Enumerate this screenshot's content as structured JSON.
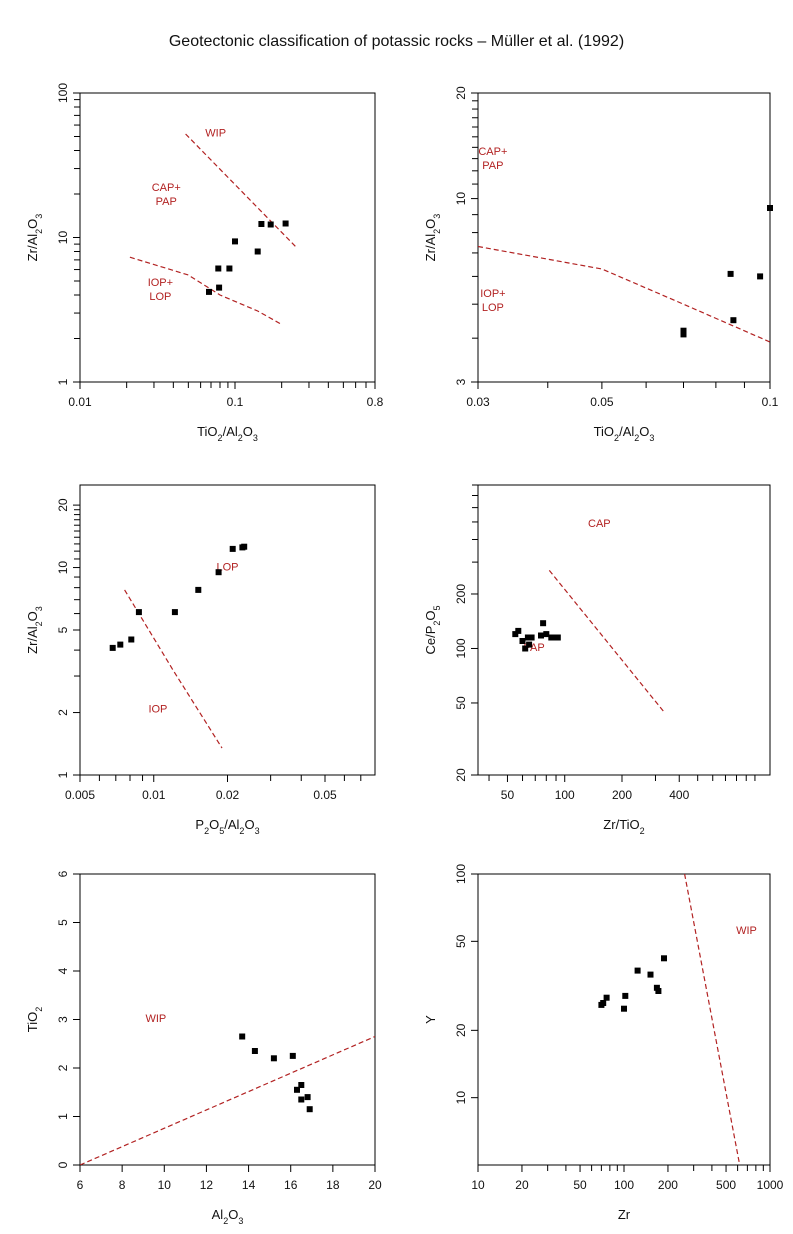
{
  "title": "Geotectonic classification of potassic rocks – Müller et al. (1992)",
  "colors": {
    "boundary": "#b22222",
    "field_label": "#b22222",
    "point": "#000000",
    "axis": "#000000"
  },
  "chart_data": [
    {
      "type": "scatter",
      "xlabel": {
        "parts": [
          [
            "TiO",
            "base"
          ],
          [
            "2",
            "sub"
          ],
          [
            "/",
            "base"
          ],
          [
            "Al",
            "base"
          ],
          [
            "2",
            "sub"
          ],
          [
            "O",
            "base"
          ],
          [
            "3",
            "sub"
          ]
        ]
      },
      "ylabel": {
        "parts": [
          [
            "Zr",
            "base"
          ],
          [
            "/",
            "base"
          ],
          [
            "Al",
            "base"
          ],
          [
            "2",
            "sub"
          ],
          [
            "O",
            "base"
          ],
          [
            "3",
            "sub"
          ]
        ]
      },
      "xscale": "log",
      "yscale": "log",
      "xlim": [
        0.01,
        0.8
      ],
      "ylim": [
        1,
        100
      ],
      "xticks": [
        [
          "0.01",
          0.01
        ],
        [
          "0.1",
          0.1
        ],
        [
          "0.8",
          0.8
        ]
      ],
      "xminor": [
        0.02,
        0.03,
        0.04,
        0.05,
        0.06,
        0.07,
        0.08,
        0.09,
        0.2,
        0.3,
        0.4,
        0.5,
        0.6,
        0.7
      ],
      "yticks": [
        [
          "1",
          1
        ],
        [
          "10",
          10
        ],
        [
          "100",
          100
        ]
      ],
      "yminor": [
        2,
        3,
        4,
        5,
        6,
        7,
        8,
        9,
        20,
        30,
        40,
        50,
        60,
        70,
        80,
        90
      ],
      "points": [
        [
          0.068,
          4.2
        ],
        [
          0.078,
          6.1
        ],
        [
          0.079,
          4.5
        ],
        [
          0.092,
          6.1
        ],
        [
          0.1,
          9.4
        ],
        [
          0.14,
          8.0
        ],
        [
          0.148,
          12.4
        ],
        [
          0.17,
          12.3
        ],
        [
          0.212,
          12.5
        ]
      ],
      "boundaries": [
        [
          [
            0.048,
            52
          ],
          [
            0.25,
            8.5
          ]
        ],
        [
          [
            0.021,
            7.3
          ],
          [
            0.05,
            5.5
          ],
          [
            0.08,
            4.0
          ],
          [
            0.14,
            3.1
          ],
          [
            0.2,
            2.5
          ]
        ]
      ],
      "field_labels": [
        {
          "lines": [
            "WIP"
          ],
          "x": 0.075,
          "y": 50
        },
        {
          "lines": [
            "CAP+",
            "PAP"
          ],
          "x": 0.036,
          "y": 21
        },
        {
          "lines": [
            "IOP+",
            "LOP"
          ],
          "x": 0.033,
          "y": 4.6
        }
      ]
    },
    {
      "type": "scatter",
      "xlabel": {
        "parts": [
          [
            "TiO",
            "base"
          ],
          [
            "2",
            "sub"
          ],
          [
            "/",
            "base"
          ],
          [
            "Al",
            "base"
          ],
          [
            "2",
            "sub"
          ],
          [
            "O",
            "base"
          ],
          [
            "3",
            "sub"
          ]
        ]
      },
      "ylabel": {
        "parts": [
          [
            "Zr",
            "base"
          ],
          [
            "/",
            "base"
          ],
          [
            "Al",
            "base"
          ],
          [
            "2",
            "sub"
          ],
          [
            "O",
            "base"
          ],
          [
            "3",
            "sub"
          ]
        ]
      },
      "xscale": "log",
      "yscale": "log",
      "xlim": [
        0.03,
        0.1
      ],
      "ylim": [
        3,
        20
      ],
      "xticks": [
        [
          "0.03",
          0.03
        ],
        [
          "0.05",
          0.05
        ],
        [
          "0.1",
          0.1
        ]
      ],
      "xminor": [
        0.04,
        0.06,
        0.07,
        0.08,
        0.09
      ],
      "yticks": [
        [
          "3",
          3
        ],
        [
          "10",
          10
        ],
        [
          "20",
          20
        ]
      ],
      "yminor": [
        4,
        5,
        6,
        7,
        8,
        9,
        11,
        12,
        13,
        14,
        15,
        16,
        17,
        18,
        19
      ],
      "points": [
        [
          0.07,
          4.2
        ],
        [
          0.07,
          4.1
        ],
        [
          0.085,
          6.1
        ],
        [
          0.086,
          4.5
        ],
        [
          0.096,
          6.0
        ],
        [
          0.1,
          9.4
        ]
      ],
      "boundaries": [
        [
          [
            0.03,
            7.3
          ],
          [
            0.05,
            6.3
          ],
          [
            0.07,
            5.0
          ],
          [
            0.1,
            3.9
          ]
        ]
      ],
      "field_labels": [
        {
          "lines": [
            "CAP+",
            "PAP"
          ],
          "x": 0.0319,
          "y": 13.3
        },
        {
          "lines": [
            "IOP+",
            "LOP"
          ],
          "x": 0.0319,
          "y": 5.25
        }
      ]
    },
    {
      "type": "scatter",
      "xlabel": {
        "parts": [
          [
            "P",
            "base"
          ],
          [
            "2",
            "sub"
          ],
          [
            "O",
            "base"
          ],
          [
            "5",
            "sub"
          ],
          [
            "/",
            "base"
          ],
          [
            "Al",
            "base"
          ],
          [
            "2",
            "sub"
          ],
          [
            "O",
            "base"
          ],
          [
            "3",
            "sub"
          ]
        ]
      },
      "ylabel": {
        "parts": [
          [
            "Zr",
            "base"
          ],
          [
            "/",
            "base"
          ],
          [
            "Al",
            "base"
          ],
          [
            "2",
            "sub"
          ],
          [
            "O",
            "base"
          ],
          [
            "3",
            "sub"
          ]
        ]
      },
      "xscale": "log",
      "yscale": "log",
      "xlim": [
        0.005,
        0.08
      ],
      "ylim": [
        1,
        25
      ],
      "xticks": [
        [
          "0.005",
          0.005
        ],
        [
          "0.01",
          0.01
        ],
        [
          "0.02",
          0.02
        ],
        [
          "0.05",
          0.05
        ]
      ],
      "xminor": [
        0.006,
        0.007,
        0.008,
        0.009,
        0.03,
        0.04,
        0.06,
        0.07
      ],
      "yticks": [
        [
          "1",
          1
        ],
        [
          "2",
          2
        ],
        [
          "5",
          5
        ],
        [
          "10",
          10
        ],
        [
          "20",
          20
        ]
      ],
      "yminor": [
        3,
        4,
        6,
        7,
        8,
        9,
        11,
        12,
        13,
        14,
        15,
        16,
        17,
        18,
        19
      ],
      "points": [
        [
          0.0068,
          4.1
        ],
        [
          0.0073,
          4.25
        ],
        [
          0.0081,
          4.5
        ],
        [
          0.0087,
          6.1
        ],
        [
          0.0122,
          6.1
        ],
        [
          0.0152,
          7.8
        ],
        [
          0.0184,
          9.5
        ],
        [
          0.021,
          12.3
        ],
        [
          0.023,
          12.5
        ],
        [
          0.0234,
          12.6
        ]
      ],
      "boundaries": [
        [
          [
            0.0076,
            7.8
          ],
          [
            0.012,
            3.2
          ],
          [
            0.019,
            1.35
          ]
        ]
      ],
      "field_labels": [
        {
          "lines": [
            "LOP"
          ],
          "x": 0.02,
          "y": 9.7
        },
        {
          "lines": [
            "IOP"
          ],
          "x": 0.0104,
          "y": 2.0
        }
      ]
    },
    {
      "type": "scatter",
      "xlabel": {
        "parts": [
          [
            "Zr",
            "base"
          ],
          [
            "/",
            "base"
          ],
          [
            "TiO",
            "base"
          ],
          [
            "2",
            "sub"
          ]
        ]
      },
      "ylabel": {
        "parts": [
          [
            "Ce",
            "base"
          ],
          [
            "/",
            "base"
          ],
          [
            "P",
            "base"
          ],
          [
            "2",
            "sub"
          ],
          [
            "O",
            "base"
          ],
          [
            "5",
            "sub"
          ]
        ]
      },
      "xscale": "log",
      "yscale": "log",
      "xlim": [
        35,
        1200
      ],
      "ylim": [
        20,
        800
      ],
      "xticks": [
        [
          "50",
          50
        ],
        [
          "100",
          100
        ],
        [
          "200",
          200
        ],
        [
          "400",
          400
        ]
      ],
      "xminor": [
        40,
        60,
        70,
        80,
        90,
        300,
        500,
        600,
        700,
        800,
        900,
        1000
      ],
      "yticks": [
        [
          "20",
          20
        ],
        [
          "50",
          50
        ],
        [
          "100",
          100
        ],
        [
          "200",
          200
        ]
      ],
      "yminor": [
        300,
        400,
        500,
        600,
        700,
        800
      ],
      "points": [
        [
          55,
          120
        ],
        [
          57,
          125
        ],
        [
          60,
          110
        ],
        [
          62,
          100
        ],
        [
          64,
          115
        ],
        [
          65,
          105
        ],
        [
          67,
          115
        ],
        [
          75,
          118
        ],
        [
          77,
          138
        ],
        [
          80,
          120
        ],
        [
          85,
          115
        ],
        [
          88,
          115
        ],
        [
          92,
          115
        ]
      ],
      "boundaries": [
        [
          [
            83,
            270
          ],
          [
            330,
            45
          ]
        ]
      ],
      "field_labels": [
        {
          "lines": [
            "CAP"
          ],
          "x": 152,
          "y": 470
        },
        {
          "lines": [
            "PAP"
          ],
          "x": 69,
          "y": 97
        }
      ]
    },
    {
      "type": "scatter",
      "xlabel": {
        "parts": [
          [
            "Al",
            "base"
          ],
          [
            "2",
            "sub"
          ],
          [
            "O",
            "base"
          ],
          [
            "3",
            "sub"
          ]
        ]
      },
      "ylabel": {
        "parts": [
          [
            "TiO",
            "base"
          ],
          [
            "2",
            "sub"
          ]
        ]
      },
      "xscale": "linear",
      "yscale": "linear",
      "xlim": [
        6,
        20
      ],
      "ylim": [
        0,
        6
      ],
      "xticks": [
        [
          "6",
          6
        ],
        [
          "8",
          8
        ],
        [
          "10",
          10
        ],
        [
          "12",
          12
        ],
        [
          "14",
          14
        ],
        [
          "16",
          16
        ],
        [
          "18",
          18
        ],
        [
          "20",
          20
        ]
      ],
      "xminor": [],
      "yticks": [
        [
          "0",
          0
        ],
        [
          "1",
          1
        ],
        [
          "2",
          2
        ],
        [
          "3",
          3
        ],
        [
          "4",
          4
        ],
        [
          "5",
          5
        ],
        [
          "6",
          6
        ]
      ],
      "yminor": [],
      "points": [
        [
          13.7,
          2.65
        ],
        [
          14.3,
          2.35
        ],
        [
          15.2,
          2.2
        ],
        [
          16.1,
          2.25
        ],
        [
          16.3,
          1.55
        ],
        [
          16.5,
          1.35
        ],
        [
          16.5,
          1.65
        ],
        [
          16.8,
          1.4
        ],
        [
          16.9,
          1.15
        ]
      ],
      "boundaries": [
        [
          [
            6,
            0
          ],
          [
            20,
            2.65
          ]
        ]
      ],
      "field_labels": [
        {
          "lines": [
            "WIP"
          ],
          "x": 9.6,
          "y": 2.95
        }
      ]
    },
    {
      "type": "scatter",
      "xlabel": {
        "parts": [
          [
            "Zr",
            "base"
          ]
        ]
      },
      "ylabel": {
        "parts": [
          [
            "Y",
            "base"
          ]
        ]
      },
      "xscale": "log",
      "yscale": "log",
      "xlim": [
        10,
        1000
      ],
      "ylim": [
        5,
        100
      ],
      "xticks": [
        [
          "10",
          10
        ],
        [
          "20",
          20
        ],
        [
          "50",
          50
        ],
        [
          "100",
          100
        ],
        [
          "200",
          200
        ],
        [
          "500",
          500
        ],
        [
          "1000",
          1000
        ]
      ],
      "xminor": [
        30,
        40,
        60,
        70,
        80,
        90,
        300,
        400,
        600,
        700,
        800,
        900
      ],
      "yticks": [
        [
          "10",
          10
        ],
        [
          "20",
          20
        ],
        [
          "50",
          50
        ],
        [
          "100",
          100
        ]
      ],
      "yminor": [],
      "points": [
        [
          70,
          26
        ],
        [
          72,
          26.5
        ],
        [
          76,
          28
        ],
        [
          100,
          25
        ],
        [
          102,
          28.5
        ],
        [
          124,
          37
        ],
        [
          152,
          35.5
        ],
        [
          168,
          31
        ],
        [
          172,
          30
        ],
        [
          188,
          42
        ]
      ],
      "boundaries": [
        [
          [
            260,
            100
          ],
          [
            620,
            5
          ]
        ]
      ],
      "field_labels": [
        {
          "lines": [
            "WIP"
          ],
          "x": 690,
          "y": 54
        }
      ]
    }
  ]
}
